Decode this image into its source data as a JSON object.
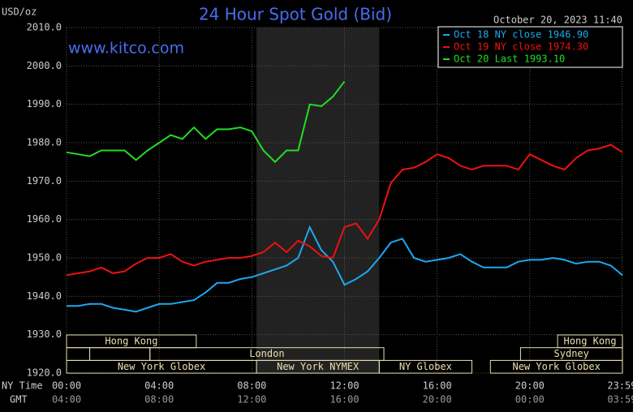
{
  "chart_data": {
    "type": "line",
    "title": "24 Hour Spot Gold (Bid)",
    "subtitle": "www.kitco.com",
    "timestamp": "October 20, 2023 11:40",
    "y_label": "USD/oz",
    "x_label": "NY Time",
    "x2_label": "GMT",
    "x": [
      0,
      0.5,
      1,
      1.5,
      2,
      2.5,
      3,
      3.5,
      4,
      4.5,
      5,
      5.5,
      6,
      6.5,
      7,
      7.5,
      8,
      8.5,
      9,
      9.5,
      10,
      10.5,
      11,
      11.5,
      12,
      12.5,
      13,
      13.5,
      14,
      14.5,
      15,
      15.5,
      16,
      16.5,
      17,
      17.5,
      18,
      18.5,
      19,
      19.5,
      20,
      20.5,
      21,
      21.5,
      22,
      22.5,
      23,
      23.5,
      24
    ],
    "series": [
      {
        "name": "Oct 18 NY close 1946.90",
        "color": "#1ea7ef",
        "values": [
          1937.5,
          1937.5,
          1938,
          1938,
          1937,
          1936.5,
          1936,
          1937,
          1938,
          1938,
          1938.5,
          1939,
          1941,
          1943.5,
          1943.5,
          1944.5,
          1945,
          1946,
          1947,
          1948,
          1950,
          1958,
          1952,
          1949,
          1943,
          1944.5,
          1946.5,
          1950,
          1954,
          1955,
          1950,
          1949,
          1949.5,
          1950,
          1951,
          1949,
          1947.5,
          1947.5,
          1947.5,
          1949,
          1949.5,
          1949.5,
          1950,
          1949.5,
          1948.5,
          1949,
          1949,
          1948,
          1945.5
        ]
      },
      {
        "name": "Oct 19 NY close 1974.30",
        "color": "#ee1111",
        "values": [
          1945.5,
          1946,
          1946.5,
          1947.5,
          1946,
          1946.5,
          1948.5,
          1950,
          1950,
          1951,
          1949,
          1948,
          1949,
          1949.5,
          1950,
          1950,
          1950.5,
          1951.5,
          1954,
          1951.5,
          1954.5,
          1953,
          1950.5,
          1950,
          1958,
          1959,
          1955,
          1960,
          1969.5,
          1973,
          1973.5,
          1975,
          1977,
          1976,
          1974,
          1973,
          1974,
          1974,
          1974,
          1973,
          1977,
          1975.5,
          1974,
          1973,
          1976,
          1978,
          1978.5,
          1979.5,
          1977.5
        ]
      },
      {
        "name": "Oct 20 Last 1993.10",
        "color": "#22dd22",
        "values": [
          1977.5,
          1977,
          1976.5,
          1978,
          1978,
          1978,
          1975.5,
          1978,
          1980,
          1982,
          1981,
          1984,
          1981,
          1983.5,
          1983.5,
          1984,
          1983,
          1978,
          1975,
          1978,
          1978,
          1990,
          1989.5,
          1992,
          1996,
          null,
          null,
          null,
          null,
          null,
          null,
          null,
          null,
          null,
          null,
          null,
          null,
          null,
          null,
          null,
          null,
          null,
          null,
          null,
          null,
          null,
          null,
          null,
          null
        ]
      }
    ],
    "xlim": [
      0,
      24
    ],
    "xticks": [
      {
        "value": 0,
        "label": "00:00"
      },
      {
        "value": 4,
        "label": "04:00"
      },
      {
        "value": 8,
        "label": "08:00"
      },
      {
        "value": 12,
        "label": "12:00"
      },
      {
        "value": 16,
        "label": "16:00"
      },
      {
        "value": 20,
        "label": "20:00"
      },
      {
        "value": 23.98,
        "label": "23:59"
      }
    ],
    "x2ticks": [
      {
        "value": 0,
        "label": "04:00"
      },
      {
        "value": 4,
        "label": "08:00"
      },
      {
        "value": 8,
        "label": "12:00"
      },
      {
        "value": 12,
        "label": "16:00"
      },
      {
        "value": 16,
        "label": "20:00"
      },
      {
        "value": 20,
        "label": "00:00"
      },
      {
        "value": 23.98,
        "label": "03:59"
      }
    ],
    "ylim": [
      1920,
      2010
    ],
    "yticks": [
      {
        "value": 1920,
        "label": "1920.0"
      },
      {
        "value": 1930,
        "label": "1930.0"
      },
      {
        "value": 1940,
        "label": "1940.0"
      },
      {
        "value": 1950,
        "label": "1950.0"
      },
      {
        "value": 1960,
        "label": "1960.0"
      },
      {
        "value": 1970,
        "label": "1970.0"
      },
      {
        "value": 1980,
        "label": "1980.0"
      },
      {
        "value": 1990,
        "label": "1990.0"
      },
      {
        "value": 2000,
        "label": "2000.0"
      },
      {
        "value": 2010,
        "label": "2010.0"
      }
    ],
    "grid": true,
    "sessions": [
      "Hong Kong",
      "London",
      "New York Globex",
      "New York NYMEX",
      "NY Globex",
      "Hong Kong",
      "Sydney",
      "New York Globex"
    ]
  }
}
